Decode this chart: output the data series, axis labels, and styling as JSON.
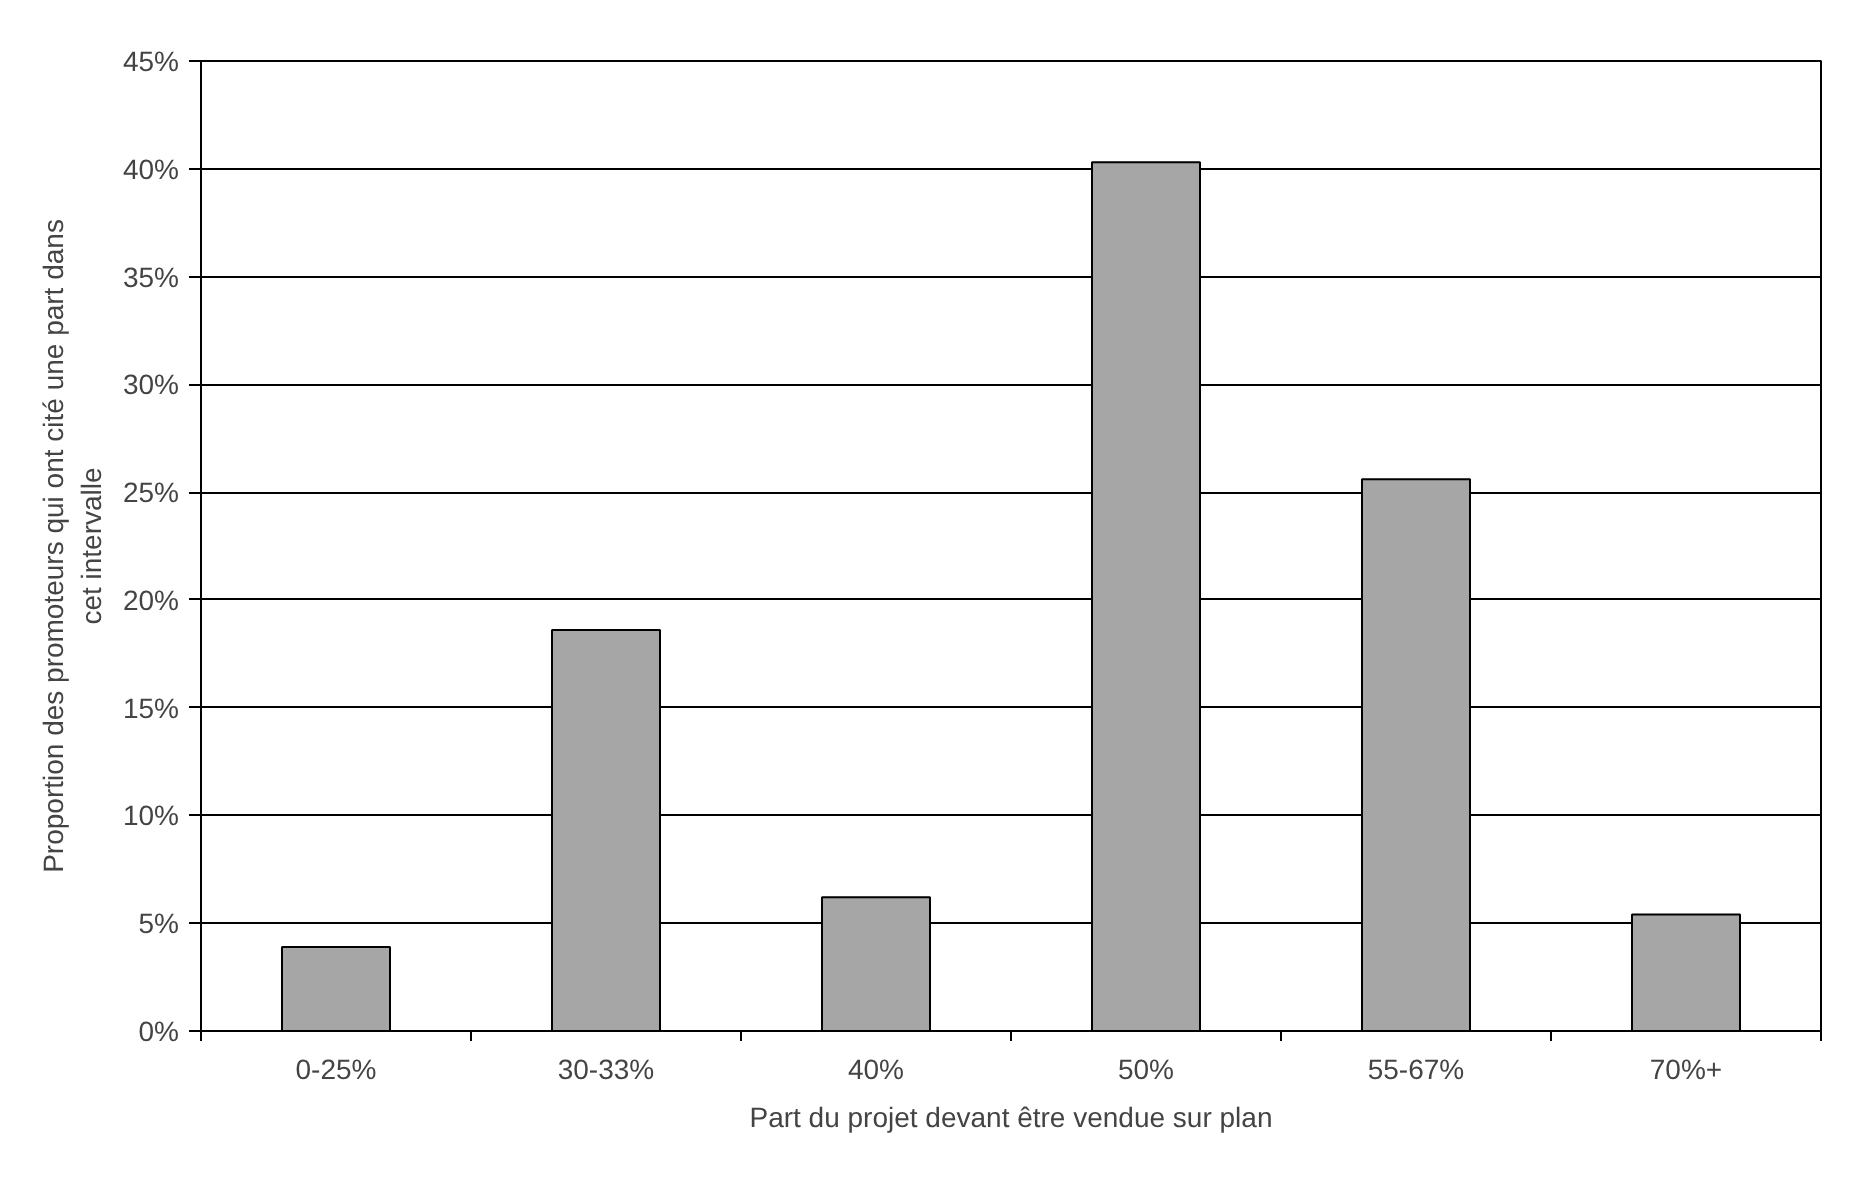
{
  "chart_data": {
    "type": "bar",
    "xlabel": "Part du projet devant être vendue sur plan",
    "ylabel": "Proportion des promoteurs qui ont cité une part dans\ncet intervalle",
    "categories": [
      "0-25%",
      "30-33%",
      "40%",
      "50%",
      "55-67%",
      "70%+"
    ],
    "values": [
      3.9,
      18.6,
      6.2,
      40.3,
      25.6,
      5.4
    ],
    "color": "#a6a6a6",
    "ylim": [
      0,
      45
    ],
    "yticks": [
      {
        "value": 0,
        "label": "0%"
      },
      {
        "value": 5,
        "label": "5%"
      },
      {
        "value": 10,
        "label": "10%"
      },
      {
        "value": 15,
        "label": "15%"
      },
      {
        "value": 20,
        "label": "20%"
      },
      {
        "value": 25,
        "label": "25%"
      },
      {
        "value": 30,
        "label": "30%"
      },
      {
        "value": 35,
        "label": "35%"
      },
      {
        "value": 40,
        "label": "40%"
      },
      {
        "value": 45,
        "label": "45%"
      }
    ],
    "grid": "y"
  }
}
